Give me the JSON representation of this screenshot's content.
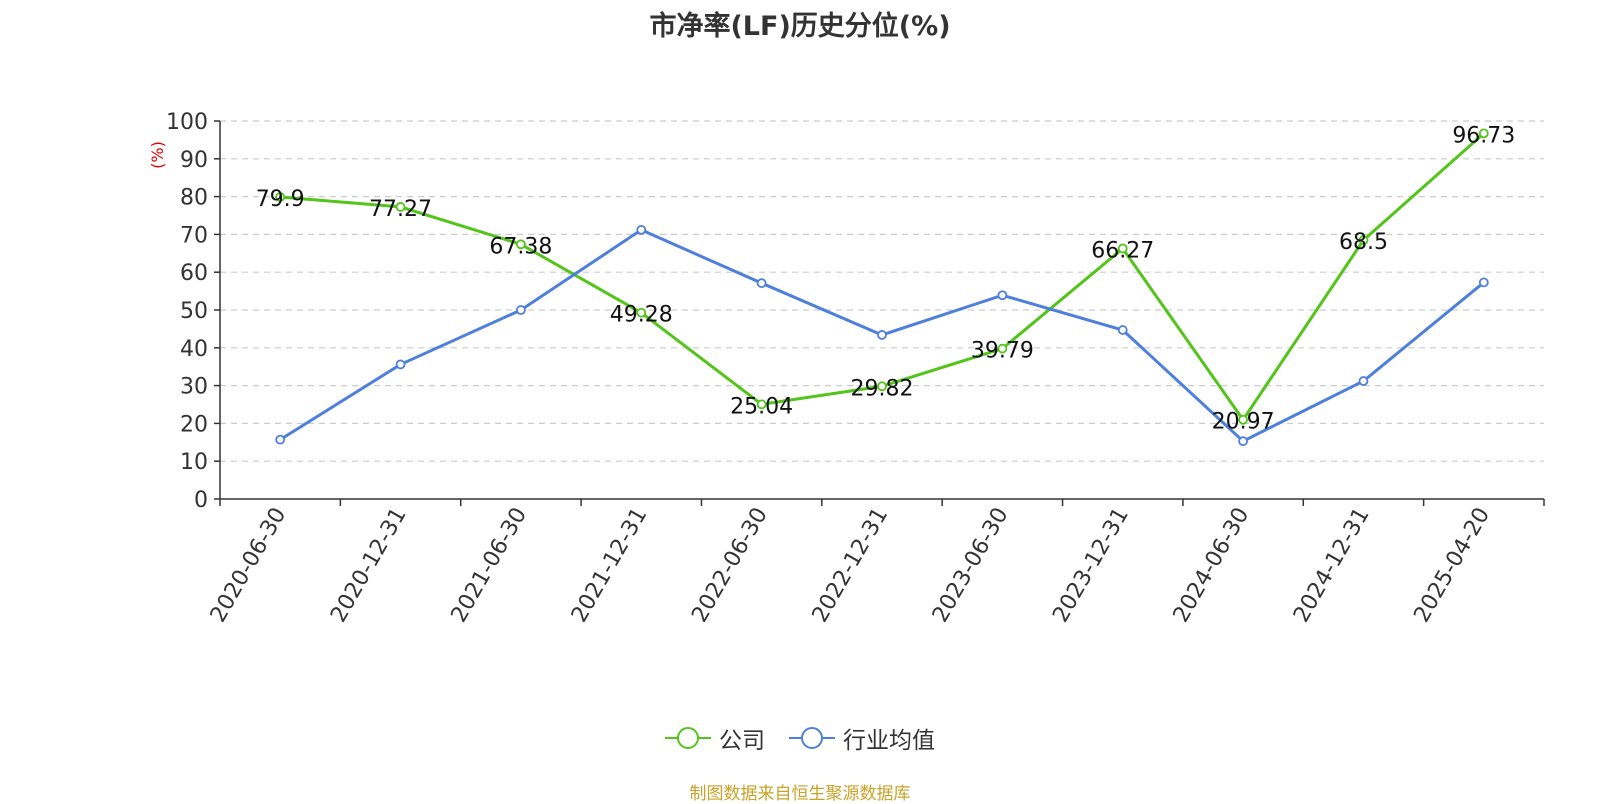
{
  "chart_data": {
    "type": "line",
    "title": "市净率(LF)历史分位(%)",
    "ylabel": "(%)",
    "xlabel": "",
    "ylim": [
      0,
      100
    ],
    "yticks": [
      0,
      10,
      20,
      30,
      40,
      50,
      60,
      70,
      80,
      90,
      100
    ],
    "categories": [
      "2020-06-30",
      "2020-12-31",
      "2021-06-30",
      "2021-12-31",
      "2022-06-30",
      "2022-12-31",
      "2023-06-30",
      "2023-12-31",
      "2024-06-30",
      "2024-12-31",
      "2025-04-20"
    ],
    "series": [
      {
        "name": "公司",
        "color": "#52c41a",
        "show_labels": true,
        "values": [
          79.9,
          77.27,
          67.38,
          49.28,
          25.04,
          29.82,
          39.79,
          66.27,
          20.97,
          68.5,
          96.73
        ]
      },
      {
        "name": "行业均值",
        "color": "#4e7fdc",
        "show_labels": false,
        "values": [
          15.7,
          35.6,
          50.0,
          71.2,
          57.1,
          43.4,
          53.9,
          44.7,
          15.3,
          31.2,
          57.3
        ]
      }
    ],
    "grid": true,
    "legend_position": "bottom-center"
  },
  "source_note": "制图数据来自恒生聚源数据库"
}
